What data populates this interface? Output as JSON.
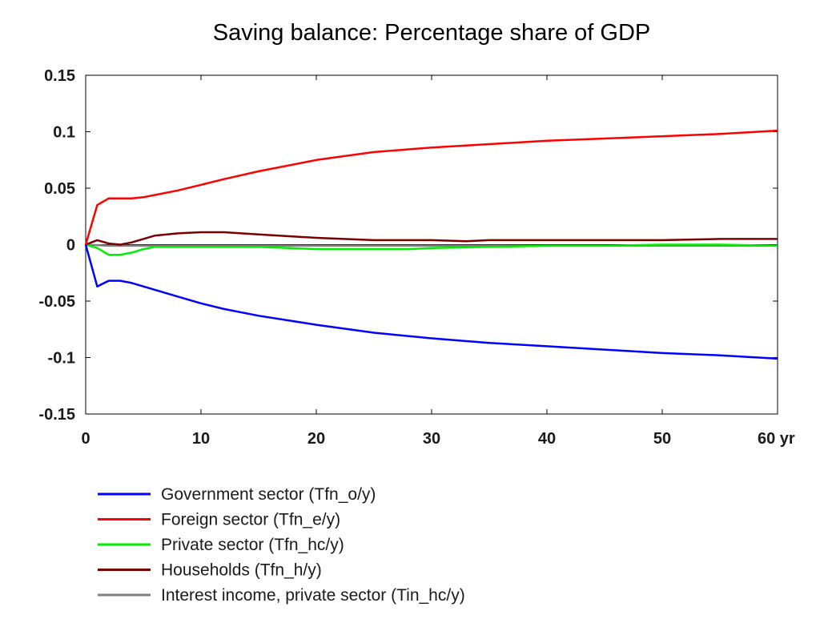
{
  "chart_data": {
    "type": "line",
    "title": "Saving balance: Percentage share of GDP",
    "xlabel": "",
    "ylabel": "",
    "xlim": [
      0,
      60
    ],
    "ylim": [
      -0.15,
      0.15
    ],
    "x_ticks": [
      0,
      10,
      20,
      30,
      40,
      50,
      60
    ],
    "x_tick_labels": [
      "0",
      "10",
      "20",
      "30",
      "40",
      "50",
      "60 yr"
    ],
    "y_ticks": [
      0.15,
      0.1,
      0.05,
      0,
      -0.05,
      -0.1,
      -0.15
    ],
    "y_tick_labels": [
      "0.15",
      "0.1",
      "0.05",
      "0",
      "-0.05",
      "-0.1",
      "-0.15"
    ],
    "grid": false,
    "legend_position": "bottom",
    "series": [
      {
        "name": "Government sector (Tfn_o/y)",
        "color": "#0000ff",
        "points": [
          [
            0,
            0
          ],
          [
            1,
            -0.037
          ],
          [
            2,
            -0.032
          ],
          [
            3,
            -0.032
          ],
          [
            4,
            -0.034
          ],
          [
            5,
            -0.037
          ],
          [
            6,
            -0.04
          ],
          [
            8,
            -0.046
          ],
          [
            10,
            -0.052
          ],
          [
            12,
            -0.057
          ],
          [
            15,
            -0.063
          ],
          [
            20,
            -0.071
          ],
          [
            25,
            -0.078
          ],
          [
            30,
            -0.083
          ],
          [
            35,
            -0.087
          ],
          [
            40,
            -0.09
          ],
          [
            45,
            -0.093
          ],
          [
            50,
            -0.096
          ],
          [
            55,
            -0.098
          ],
          [
            60,
            -0.101
          ]
        ]
      },
      {
        "name": "Foreign sector (Tfn_e/y)",
        "color": "#ff0000",
        "points": [
          [
            0,
            0
          ],
          [
            1,
            0.035
          ],
          [
            2,
            0.041
          ],
          [
            3,
            0.041
          ],
          [
            4,
            0.041
          ],
          [
            5,
            0.042
          ],
          [
            6,
            0.044
          ],
          [
            8,
            0.048
          ],
          [
            10,
            0.053
          ],
          [
            12,
            0.058
          ],
          [
            15,
            0.065
          ],
          [
            20,
            0.075
          ],
          [
            25,
            0.082
          ],
          [
            30,
            0.086
          ],
          [
            35,
            0.089
          ],
          [
            40,
            0.092
          ],
          [
            45,
            0.094
          ],
          [
            50,
            0.096
          ],
          [
            55,
            0.098
          ],
          [
            60,
            0.101
          ]
        ]
      },
      {
        "name": "Private sector (Tfn_hc/y)",
        "color": "#00ee00",
        "points": [
          [
            0,
            0
          ],
          [
            1,
            -0.003
          ],
          [
            2,
            -0.009
          ],
          [
            3,
            -0.009
          ],
          [
            4,
            -0.007
          ],
          [
            5,
            -0.004
          ],
          [
            6,
            -0.002
          ],
          [
            8,
            -0.002
          ],
          [
            10,
            -0.002
          ],
          [
            15,
            -0.002
          ],
          [
            20,
            -0.004
          ],
          [
            25,
            -0.004
          ],
          [
            28,
            -0.004
          ],
          [
            30,
            -0.003
          ],
          [
            35,
            -0.002
          ],
          [
            40,
            -0.001
          ],
          [
            45,
            -0.001
          ],
          [
            50,
            0
          ],
          [
            55,
            0
          ],
          [
            60,
            -0.001
          ]
        ]
      },
      {
        "name": "Households (Tfn_h/y)",
        "color": "#7a0000",
        "points": [
          [
            0,
            0
          ],
          [
            1,
            0.004
          ],
          [
            2,
            0.001
          ],
          [
            3,
            0
          ],
          [
            4,
            0.002
          ],
          [
            5,
            0.005
          ],
          [
            6,
            0.008
          ],
          [
            8,
            0.01
          ],
          [
            10,
            0.011
          ],
          [
            12,
            0.011
          ],
          [
            15,
            0.009
          ],
          [
            20,
            0.006
          ],
          [
            25,
            0.004
          ],
          [
            30,
            0.004
          ],
          [
            33,
            0.003
          ],
          [
            35,
            0.004
          ],
          [
            40,
            0.004
          ],
          [
            45,
            0.004
          ],
          [
            50,
            0.004
          ],
          [
            55,
            0.005
          ],
          [
            60,
            0.005
          ]
        ]
      },
      {
        "name": "Interest income, private sector (Tin_hc/y)",
        "color": "#808080",
        "points": [
          [
            0,
            0
          ],
          [
            2,
            -0.001
          ],
          [
            5,
            -0.001
          ],
          [
            10,
            -0.001
          ],
          [
            20,
            -0.001
          ],
          [
            30,
            -0.001
          ],
          [
            40,
            -0.001
          ],
          [
            50,
            -0.001
          ],
          [
            60,
            -0.001
          ]
        ]
      }
    ]
  }
}
